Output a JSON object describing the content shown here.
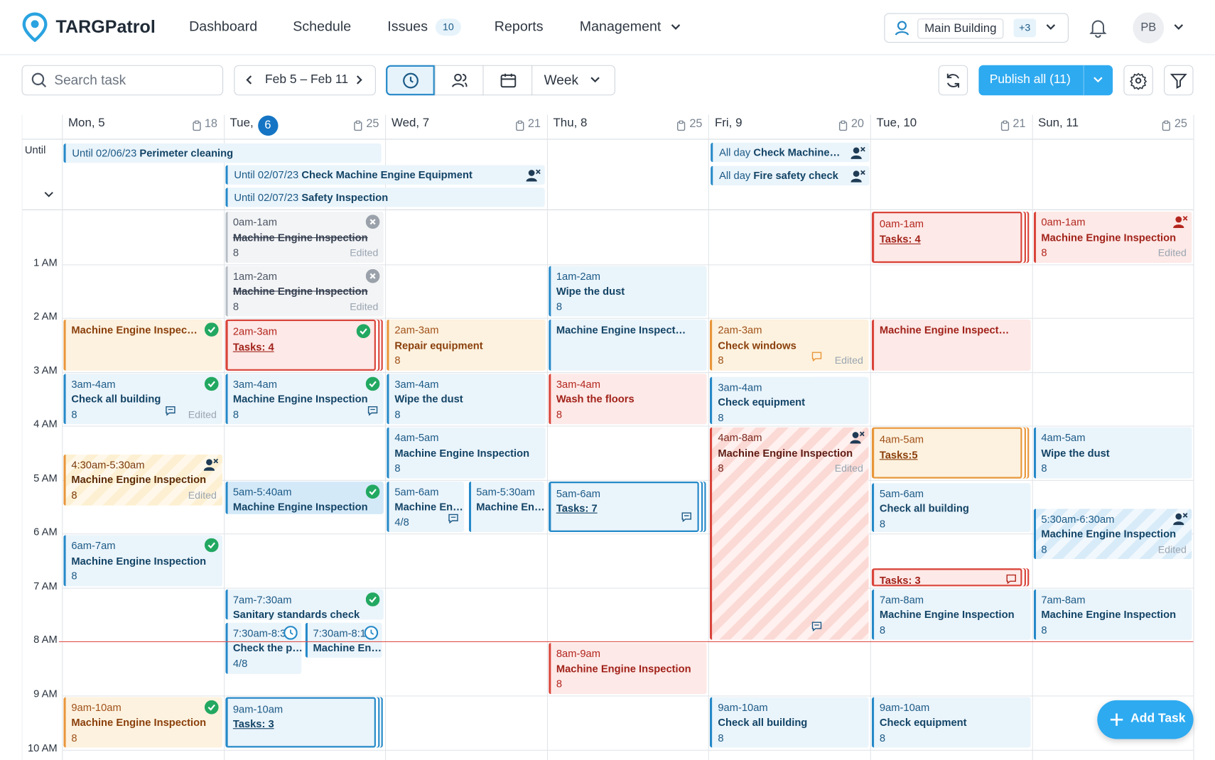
{
  "header": {
    "brand": "TARGPatrol",
    "nav": [
      "Dashboard",
      "Schedule",
      "Issues",
      "Reports",
      "Management"
    ],
    "issues_badge": "10",
    "location": "Main Building",
    "location_extra": "+3",
    "avatar": "PB"
  },
  "toolbar": {
    "search_placeholder": "Search task",
    "date_range": "Feb 5 – Feb 11",
    "view": "Week",
    "publish": "Publish all (11)"
  },
  "days": [
    {
      "label": "Mon, 5",
      "count": "18"
    },
    {
      "label": "Tue,",
      "badge": "6",
      "count": "25"
    },
    {
      "label": "Wed, 7",
      "count": "21"
    },
    {
      "label": "Thu, 8",
      "count": "25"
    },
    {
      "label": "Fri, 9",
      "count": "20"
    },
    {
      "label": "Tue, 10",
      "count": "21"
    },
    {
      "label": "Sun, 11",
      "count": "25"
    }
  ],
  "gutter": {
    "all_day": "Until",
    "hours": [
      "1 AM",
      "2 AM",
      "3 AM",
      "4 AM",
      "5 AM",
      "6 AM",
      "7 AM",
      "8 AM",
      "9 AM",
      "10 AM"
    ]
  },
  "all_day_events": [
    {
      "prefix": "Until 02/06/23",
      "title": "Perimeter cleaning"
    },
    {
      "prefix": "Until 02/07/23",
      "title": "Check Machine Engine Equipment"
    },
    {
      "prefix": "Until 02/07/23",
      "title": "Safety Inspection"
    },
    {
      "prefix": "All day",
      "title": "Check Machine…"
    },
    {
      "prefix": "All day",
      "title": "Fire safety check"
    }
  ],
  "events": [
    {
      "title": "Machine Engine Inspec…"
    },
    {
      "time": "3am-4am",
      "title": "Check all building",
      "count": "8",
      "note": "Edited"
    },
    {
      "time": "4:30am-5:30am",
      "title": "Machine Engine Inspection",
      "count": "8",
      "note": "Edited"
    },
    {
      "time": "6am-7am",
      "title": "Machine Engine Inspection",
      "count": "8"
    },
    {
      "time": "9am-10am",
      "title": "Machine Engine Inspection",
      "count": "8"
    },
    {
      "time": "0am-1am",
      "title": "Machine Engine Inspection",
      "count": "8",
      "note": "Edited"
    },
    {
      "time": "1am-2am",
      "title": "Machine Engine Inspection",
      "count": "8",
      "note": "Edited"
    },
    {
      "time": "2am-3am",
      "title": "Tasks: 4"
    },
    {
      "time": "3am-4am",
      "title": "Machine Engine Inspection",
      "count": "8"
    },
    {
      "time": "5am-5:40am",
      "title": "Machine Engine Inspection"
    },
    {
      "time": "7am-7:30am",
      "title": "Sanitary standards check"
    },
    {
      "time": "7:30am-8:3…",
      "title": "Check the p…",
      "count": "4/8"
    },
    {
      "time": "7:30am-8:1…",
      "title": "Machine En…"
    },
    {
      "time": "9am-10am",
      "title": "Tasks: 3"
    },
    {
      "time": "2am-3am",
      "title": "Repair equipment",
      "count": "8"
    },
    {
      "time": "3am-4am",
      "title": "Wipe the dust",
      "count": "8"
    },
    {
      "time": "4am-5am",
      "title": "Machine Engine Inspection",
      "count": "8"
    },
    {
      "time": "5am-6am",
      "title": "Machine En…",
      "count": "4/8"
    },
    {
      "time": "5am-5:30am",
      "title": "Machine En…"
    },
    {
      "time": "1am-2am",
      "title": "Wipe the dust",
      "count": "8"
    },
    {
      "title": "Machine Engine Inspect…"
    },
    {
      "time": "3am-4am",
      "title": "Wash the floors",
      "count": "8"
    },
    {
      "time": "5am-6am",
      "title": "Tasks: 7"
    },
    {
      "time": "8am-9am",
      "title": "Machine Engine Inspection",
      "count": "8"
    },
    {
      "time": "2am-3am",
      "title": "Check windows",
      "count": "8",
      "note": "Edited"
    },
    {
      "time": "3am-4am",
      "title": "Check equipment",
      "count": "8"
    },
    {
      "time": "4am-8am",
      "title": "Machine Engine Inspection",
      "count": "8",
      "note": "Edited"
    },
    {
      "time": "9am-10am",
      "title": "Check all building",
      "count": "8"
    },
    {
      "time": "0am-1am",
      "title": "Tasks: 4"
    },
    {
      "title": "Machine Engine Inspect…"
    },
    {
      "time": "4am-5am",
      "title": "Tasks:5"
    },
    {
      "time": "5am-6am",
      "title": "Check all building",
      "count": "8"
    },
    {
      "title": "Tasks: 3"
    },
    {
      "time": "7am-8am",
      "title": "Machine Engine Inspection",
      "count": "8"
    },
    {
      "time": "9am-10am",
      "title": "Check equipment",
      "count": "8"
    },
    {
      "time": "0am-1am",
      "title": "Machine Engine Inspection",
      "count": "8",
      "note": "Edited"
    },
    {
      "time": "4am-5am",
      "title": "Wipe the dust",
      "count": "8"
    },
    {
      "time": "5:30am-6:30am",
      "title": "Machine Engine Inspection",
      "count": "8",
      "note": "Edited"
    },
    {
      "time": "7am-8am",
      "title": "Machine Engine Inspection",
      "count": "8"
    }
  ],
  "add_task": "Add Task"
}
